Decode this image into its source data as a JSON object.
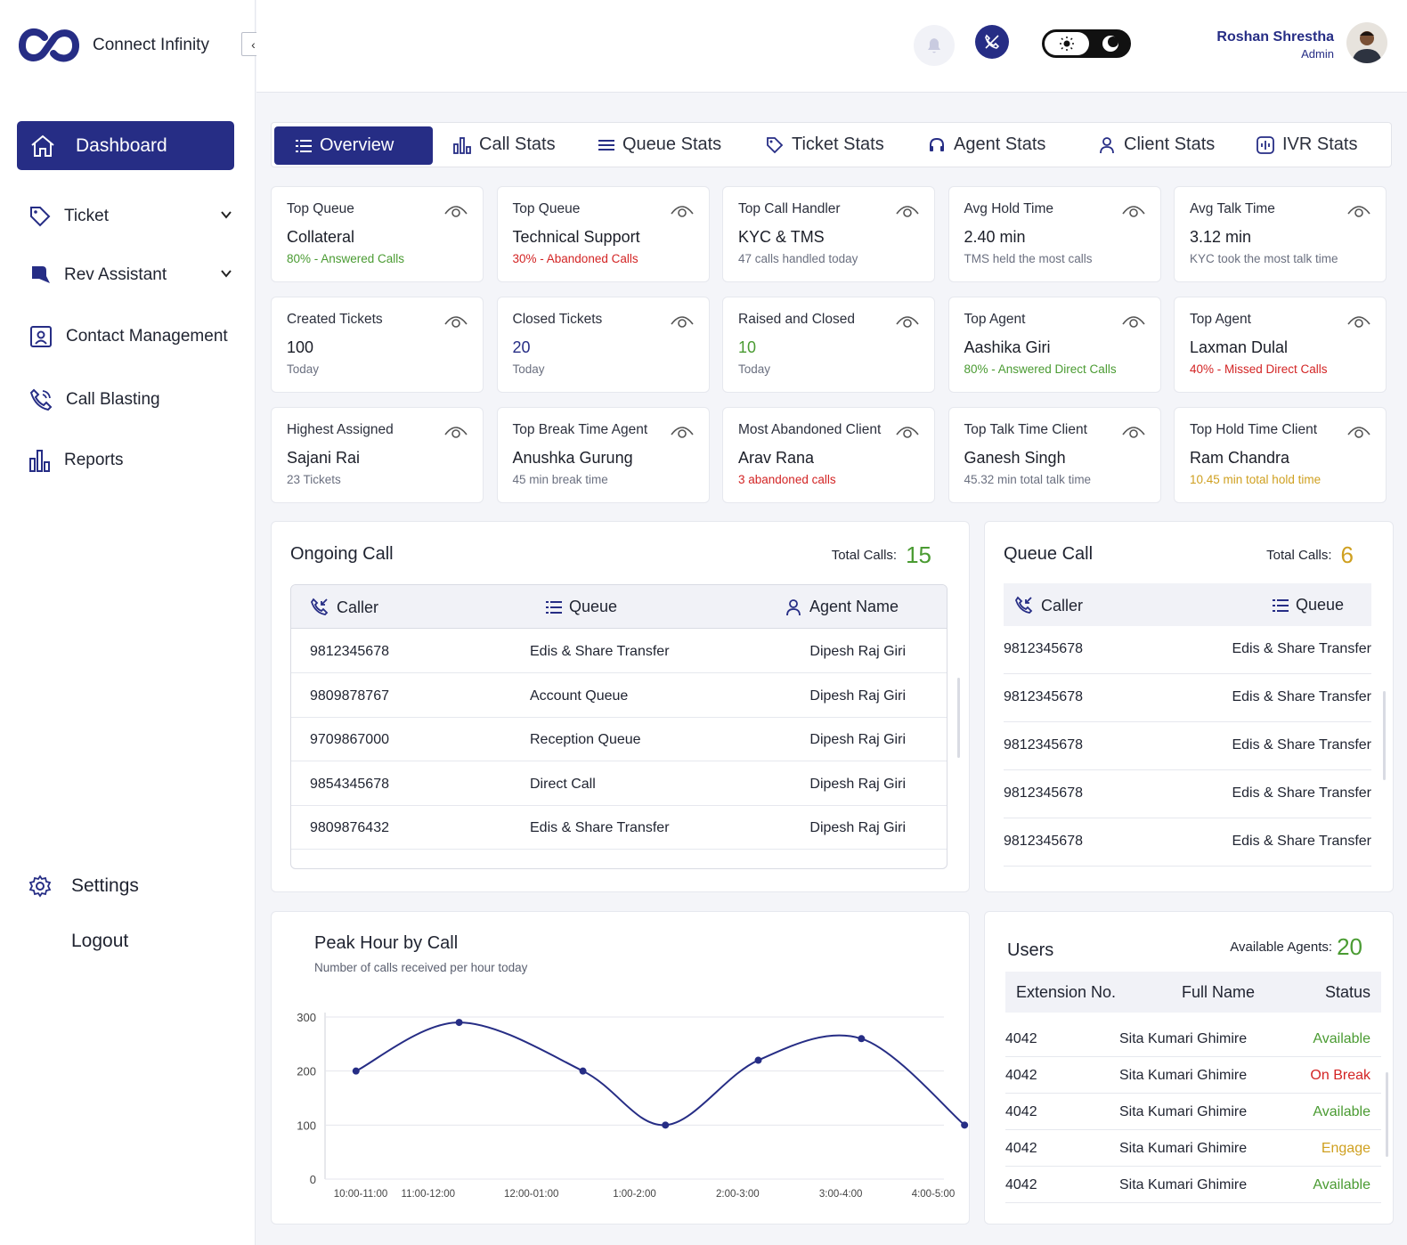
{
  "app": {
    "name": "Connect Infinity"
  },
  "sidebar": {
    "active": "Dashboard",
    "items": [
      {
        "label": "Ticket"
      },
      {
        "label": "Rev Assistant"
      },
      {
        "label": "Contact Management"
      },
      {
        "label": "Call Blasting"
      },
      {
        "label": "Reports"
      }
    ],
    "settings": "Settings",
    "logout": "Logout"
  },
  "user": {
    "name": "Roshan Shrestha",
    "role": "Admin"
  },
  "tabs": [
    "Overview",
    "Call Stats",
    "Queue Stats",
    "Ticket Stats",
    "Agent Stats",
    "Client Stats",
    "IVR Stats"
  ],
  "cards": [
    {
      "title": "Top Queue",
      "value": "Collateral",
      "sub": "80% - Answered Calls",
      "subColor": "green"
    },
    {
      "title": "Top Queue",
      "value": "Technical Support",
      "sub": "30% - Abandoned Calls",
      "subColor": "red"
    },
    {
      "title": "Top Call Handler",
      "value": "KYC & TMS",
      "sub": "47 calls handled today",
      "subColor": "gray"
    },
    {
      "title": "Avg Hold Time",
      "value": "2.40 min",
      "sub": "TMS held the most calls",
      "subColor": "gray"
    },
    {
      "title": "Avg Talk Time",
      "value": "3.12 min",
      "sub": "KYC took the most talk time",
      "subColor": "gray"
    },
    {
      "title": "Created Tickets",
      "value": "100",
      "sub": "Today",
      "subColor": "gray"
    },
    {
      "title": "Closed Tickets",
      "value": "20",
      "sub": "Today",
      "subColor": "gray",
      "valueColor": "blue"
    },
    {
      "title": "Raised and Closed",
      "value": "10",
      "sub": "Today",
      "subColor": "gray",
      "valueColor": "green"
    },
    {
      "title": "Top Agent",
      "value": "Aashika Giri",
      "sub": "80% - Answered Direct Calls",
      "subColor": "green"
    },
    {
      "title": "Top Agent",
      "value": "Laxman Dulal",
      "sub": "40% - Missed Direct Calls",
      "subColor": "red"
    },
    {
      "title": "Highest Assigned",
      "value": "Sajani Rai",
      "sub": "23 Tickets",
      "subColor": "gray"
    },
    {
      "title": "Top Break Time Agent",
      "value": "Anushka Gurung",
      "sub": "45 min break time",
      "subColor": "gray"
    },
    {
      "title": "Most Abandoned Client",
      "value": "Arav Rana",
      "sub": "3 abandoned calls",
      "subColor": "red"
    },
    {
      "title": "Top Talk Time Client",
      "value": "Ganesh Singh",
      "sub": "45.32 min total talk time",
      "subColor": "gray"
    },
    {
      "title": "Top Hold Time Client",
      "value": "Ram Chandra",
      "sub": "10.45 min total hold time",
      "subColor": "yellow"
    }
  ],
  "ongoing": {
    "title": "Ongoing Call",
    "total_label": "Total Calls:",
    "total": "15",
    "headers": [
      "Caller",
      "Queue",
      "Agent Name"
    ],
    "rows": [
      [
        "9812345678",
        "Edis & Share Transfer",
        "Dipesh Raj Giri"
      ],
      [
        "9809878767",
        "Account Queue",
        "Dipesh Raj Giri"
      ],
      [
        "9709867000",
        "Reception Queue",
        "Dipesh Raj Giri"
      ],
      [
        "9854345678",
        "Direct Call",
        "Dipesh Raj Giri"
      ],
      [
        "9809876432",
        "Edis & Share Transfer",
        "Dipesh Raj Giri"
      ]
    ]
  },
  "queue": {
    "title": "Queue Call",
    "total_label": "Total Calls:",
    "total": "6",
    "headers": [
      "Caller",
      "Queue"
    ],
    "rows": [
      [
        "9812345678",
        "Edis & Share Transfer"
      ],
      [
        "9812345678",
        "Edis & Share Transfer"
      ],
      [
        "9812345678",
        "Edis & Share Transfer"
      ],
      [
        "9812345678",
        "Edis & Share Transfer"
      ],
      [
        "9812345678",
        "Edis & Share Transfer"
      ]
    ]
  },
  "users": {
    "title": "Users",
    "avail_label": "Available Agents:",
    "avail": "20",
    "headers": [
      "Extension No.",
      "Full Name",
      "Status"
    ],
    "rows": [
      [
        "4042",
        "Sita Kumari Ghimire",
        "Available",
        "green"
      ],
      [
        "4042",
        "Sita Kumari Ghimire",
        "On Break",
        "red"
      ],
      [
        "4042",
        "Sita Kumari Ghimire",
        "Available",
        "green"
      ],
      [
        "4042",
        "Sita Kumari Ghimire",
        "Engage",
        "yellow"
      ],
      [
        "4042",
        "Sita Kumari Ghimire",
        "Available",
        "green"
      ]
    ]
  },
  "chart_data": {
    "type": "line",
    "title": "Peak Hour by Call",
    "subtitle": "Number of calls received per hour today",
    "x": [
      "10:00-11:00",
      "11:00-12:00",
      "12:00-01:00",
      "1:00-2:00",
      "2:00-3:00",
      "3:00-4:00",
      "4:00-5:00"
    ],
    "values": [
      200,
      290,
      200,
      100,
      220,
      260,
      100
    ],
    "point_x": [
      0.3,
      1.3,
      2.5,
      3.3,
      4.2,
      5.2,
      6.2
    ],
    "yticks": [
      0,
      100,
      200,
      300
    ],
    "ylim": [
      0,
      300
    ],
    "color": "#262d85",
    "grid": true
  }
}
